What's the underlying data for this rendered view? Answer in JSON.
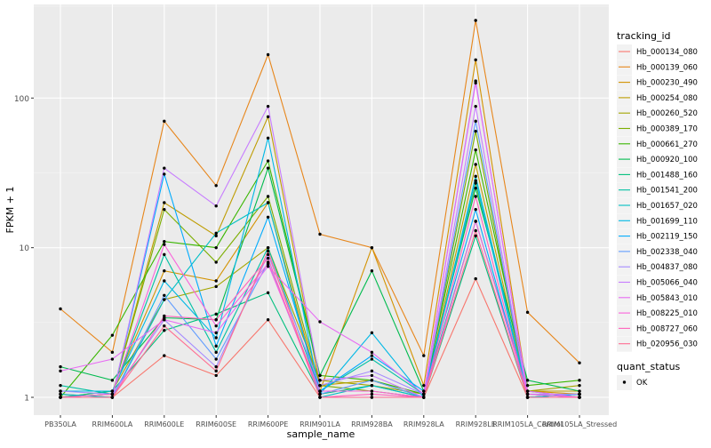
{
  "chart_data": {
    "type": "line",
    "xlabel": "sample_name",
    "ylabel": "FPKM + 1",
    "y_scale": "log10",
    "ylim": [
      0.9,
      350
    ],
    "y_ticks": [
      1,
      10,
      100
    ],
    "grid": true,
    "legend_position": "right",
    "categories": [
      "PB350LA",
      "RRIM600LA",
      "RRIM600LE",
      "RRIM600SE",
      "RRIM600PE",
      "RRIM901LA",
      "RRIM928BA",
      "RRIM928LA",
      "RRIM928LE",
      "RRIM105LA_Control",
      "RRIM105LA_Stressed"
    ],
    "legend_title": "tracking_id",
    "series": [
      {
        "name": "Hb_000134_080",
        "color": "#F8766D",
        "values": [
          1.05,
          1.0,
          1.9,
          1.4,
          3.3,
          1.0,
          1.0,
          1.0,
          6.2,
          1.0,
          1.05
        ]
      },
      {
        "name": "Hb_000139_060",
        "color": "#E7861B",
        "values": [
          3.9,
          2.0,
          70,
          26,
          195,
          12.3,
          10.0,
          1.9,
          330,
          3.7,
          1.7
        ]
      },
      {
        "name": "Hb_000230_490",
        "color": "#D39200",
        "values": [
          1.1,
          1.1,
          7.0,
          6.0,
          20.0,
          1.1,
          10.0,
          1.2,
          180,
          1.1,
          1.05
        ]
      },
      {
        "name": "Hb_000254_080",
        "color": "#BE9C00",
        "values": [
          1.0,
          1.05,
          20.0,
          12.0,
          75,
          1.2,
          1.3,
          1.0,
          36,
          1.1,
          1.1
        ]
      },
      {
        "name": "Hb_000260_520",
        "color": "#A3A500",
        "values": [
          1.0,
          1.1,
          4.5,
          5.5,
          10.0,
          1.3,
          1.2,
          1.05,
          27,
          1.1,
          1.2
        ]
      },
      {
        "name": "Hb_000389_170",
        "color": "#7CAE00",
        "values": [
          1.0,
          1.05,
          18.0,
          8.0,
          22.0,
          1.2,
          1.1,
          1.0,
          60,
          1.0,
          1.05
        ]
      },
      {
        "name": "Hb_000661_270",
        "color": "#39B600",
        "values": [
          1.0,
          2.6,
          11.0,
          10.0,
          38,
          1.4,
          1.3,
          1.05,
          45,
          1.2,
          1.3
        ]
      },
      {
        "name": "Hb_000920_100",
        "color": "#00BB4E",
        "values": [
          1.6,
          1.3,
          3.4,
          3.3,
          34,
          1.4,
          7.0,
          1.1,
          25,
          1.3,
          1.1
        ]
      },
      {
        "name": "Hb_001488_160",
        "color": "#00BF7D",
        "values": [
          1.0,
          1.1,
          2.8,
          3.6,
          5.0,
          1.05,
          1.2,
          1.0,
          12,
          1.0,
          1.05
        ]
      },
      {
        "name": "Hb_001541_200",
        "color": "#00C1A3",
        "values": [
          1.2,
          1.05,
          9.0,
          2.0,
          10.0,
          1.1,
          1.8,
          1.05,
          15,
          1.1,
          1.0
        ]
      },
      {
        "name": "Hb_001657_020",
        "color": "#00BFC4",
        "values": [
          1.05,
          1.0,
          4.5,
          12.5,
          20.0,
          1.0,
          1.2,
          1.0,
          30,
          1.05,
          1.0
        ]
      },
      {
        "name": "Hb_001699_110",
        "color": "#00B8E5",
        "values": [
          1.1,
          1.1,
          6.0,
          2.5,
          54,
          1.05,
          2.7,
          1.0,
          28,
          1.0,
          1.05
        ]
      },
      {
        "name": "Hb_002119_150",
        "color": "#00ABFD",
        "values": [
          1.0,
          1.0,
          31,
          2.2,
          16.0,
          1.1,
          1.9,
          1.1,
          18,
          1.0,
          1.0
        ]
      },
      {
        "name": "Hb_002338_040",
        "color": "#619CFF",
        "values": [
          1.0,
          1.0,
          4.8,
          1.8,
          8.0,
          1.05,
          1.3,
          1.0,
          70,
          1.0,
          1.0
        ]
      },
      {
        "name": "Hb_004837_080",
        "color": "#A58AFF",
        "values": [
          1.1,
          1.05,
          3.3,
          1.6,
          9.0,
          1.2,
          1.5,
          1.05,
          130,
          1.05,
          1.05
        ]
      },
      {
        "name": "Hb_005066_040",
        "color": "#C77CFF",
        "values": [
          1.0,
          1.0,
          34,
          19.0,
          88,
          1.3,
          1.4,
          1.0,
          88,
          1.0,
          1.0
        ]
      },
      {
        "name": "Hb_005843_010",
        "color": "#E76BF3",
        "values": [
          1.5,
          1.8,
          3.3,
          2.7,
          7.5,
          3.2,
          2.0,
          1.05,
          126,
          1.1,
          1.0
        ]
      },
      {
        "name": "Hb_008225_010",
        "color": "#FA62DB",
        "values": [
          1.0,
          1.05,
          10.5,
          3.0,
          7.8,
          1.1,
          1.1,
          1.0,
          15,
          1.05,
          1.0
        ]
      },
      {
        "name": "Hb_008727_060",
        "color": "#FF62BC",
        "values": [
          1.0,
          1.0,
          3.5,
          3.3,
          8.5,
          1.0,
          1.05,
          1.0,
          22,
          1.0,
          1.0
        ]
      },
      {
        "name": "Hb_020956_030",
        "color": "#FF6C91",
        "values": [
          1.0,
          1.0,
          3.0,
          1.5,
          9.5,
          1.0,
          1.0,
          1.0,
          13,
          1.0,
          1.0
        ]
      }
    ],
    "point_legend": {
      "title": "quant_status",
      "entries": [
        "OK"
      ]
    }
  }
}
